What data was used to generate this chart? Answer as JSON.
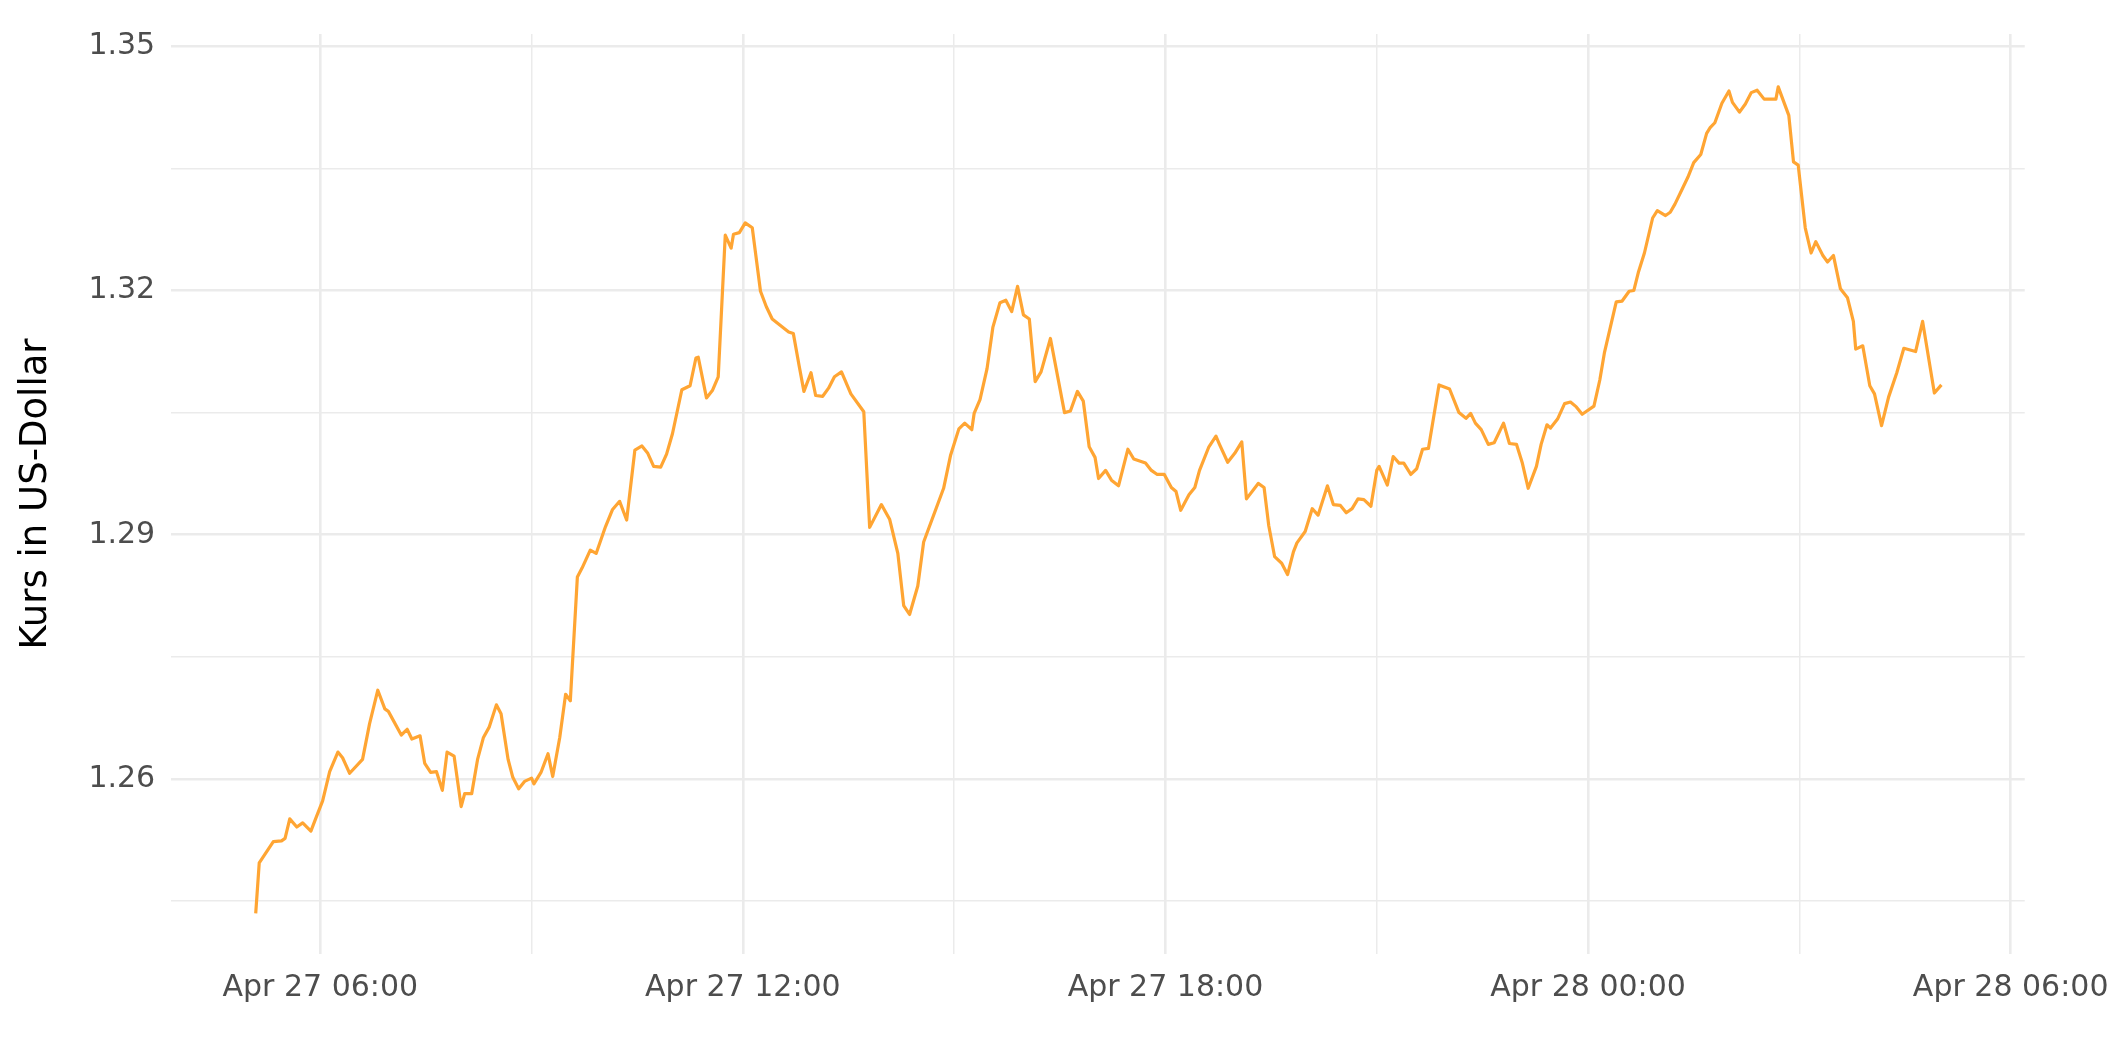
{
  "chart_data": {
    "type": "line",
    "ylabel": "Kurs in US-Dollar",
    "xlim": [
      "--04-27T03:53",
      "--04-28T06:12"
    ],
    "xticks": [
      {
        "value": "--04-27T06:00",
        "label": "Apr 27 06:00"
      },
      {
        "value": "--04-27T09:00",
        "label": null
      },
      {
        "value": "--04-27T12:00",
        "label": "Apr 27 12:00"
      },
      {
        "value": "--04-27T15:00",
        "label": null
      },
      {
        "value": "--04-27T18:00",
        "label": "Apr 27 18:00"
      },
      {
        "value": "--04-27T21:00",
        "label": null
      },
      {
        "value": "--04-28T00:00",
        "label": "Apr 28 00:00"
      },
      {
        "value": "--04-28T03:00",
        "label": null
      },
      {
        "value": "--04-28T06:00",
        "label": "Apr 28 06:00"
      }
    ],
    "ylim": [
      1.2385,
      1.3515
    ],
    "yticks": [
      {
        "value": 1.245,
        "label": null
      },
      1.26,
      {
        "value": 1.275,
        "label": null
      },
      1.29,
      {
        "value": 1.305,
        "label": null
      },
      1.32,
      {
        "value": 1.335,
        "label": null
      },
      1.35
    ],
    "grid": true,
    "legend": false,
    "marker": "none",
    "line_style": "solid",
    "x": [
      "--04-27T05:05",
      "--04-27T05:08",
      "--04-27T05:20",
      "--04-27T05:27",
      "--04-27T05:30",
      "--04-27T05:34",
      "--04-27T05:40",
      "--04-27T05:45",
      "--04-27T05:52",
      "--04-27T05:56",
      "--04-27T06:02",
      "--04-27T06:08",
      "--04-27T06:15",
      "--04-27T06:19",
      "--04-27T06:25",
      "--04-27T06:36",
      "--04-27T06:42",
      "--04-27T06:49",
      "--04-27T06:55",
      "--04-27T06:58",
      "--04-27T07:09",
      "--04-27T07:14",
      "--04-27T07:18",
      "--04-27T07:25",
      "--04-27T07:29",
      "--04-27T07:34",
      "--04-27T07:39",
      "--04-27T07:44",
      "--04-27T07:48",
      "--04-27T07:54",
      "--04-27T08:00",
      "--04-27T08:03",
      "--04-27T08:09",
      "--04-27T08:14",
      "--04-27T08:19",
      "--04-27T08:24",
      "--04-27T08:30",
      "--04-27T08:34",
      "--04-27T08:40",
      "--04-27T08:44",
      "--04-27T08:49",
      "--04-27T08:54",
      "--04-27T09:00",
      "--04-27T09:02",
      "--04-27T09:08",
      "--04-27T09:14",
      "--04-27T09:18",
      "--04-27T09:24",
      "--04-27T09:29",
      "--04-27T09:33",
      "--04-27T09:39",
      "--04-27T09:43",
      "--04-27T09:50",
      "--04-27T09:55",
      "--04-27T10:03",
      "--04-27T10:09",
      "--04-27T10:15",
      "--04-27T10:21",
      "--04-27T10:28",
      "--04-27T10:34",
      "--04-27T10:39",
      "--04-27T10:44",
      "--04-27T10:50",
      "--04-27T10:55",
      "--04-27T11:00",
      "--04-27T11:08",
      "--04-27T11:15",
      "--04-27T11:20",
      "--04-27T11:22",
      "--04-27T11:29",
      "--04-27T11:34",
      "--04-27T11:39",
      "--04-27T11:45",
      "--04-27T11:50",
      "--04-27T11:52",
      "--04-27T11:57",
      "--04-27T12:02",
      "--04-27T12:08",
      "--04-27T12:15",
      "--04-27T12:20",
      "--04-27T12:25",
      "--04-27T12:39",
      "--04-27T12:43",
      "--04-27T12:48",
      "--04-27T12:52",
      "--04-27T12:58",
      "--04-27T13:02",
      "--04-27T13:08",
      "--04-27T13:13",
      "--04-27T13:18",
      "--04-27T13:24",
      "--04-27T13:32",
      "--04-27T13:43",
      "--04-27T13:48",
      "--04-27T13:58",
      "--04-27T14:05",
      "--04-27T14:12",
      "--04-27T14:17",
      "--04-27T14:22",
      "--04-27T14:29",
      "--04-27T14:34",
      "--04-27T14:51",
      "--04-27T14:57",
      "--04-27T15:04",
      "--04-27T15:09",
      "--04-27T15:15",
      "--04-27T15:17",
      "--04-27T15:22",
      "--04-27T15:28",
      "--04-27T15:33",
      "--04-27T15:39",
      "--04-27T15:44",
      "--04-27T15:49",
      "--04-27T15:54",
      "--04-27T15:59",
      "--04-27T16:04",
      "--04-27T16:09",
      "--04-27T16:14",
      "--04-27T16:22",
      "--04-27T16:34",
      "--04-27T16:39",
      "--04-27T16:45",
      "--04-27T16:50",
      "--04-27T16:55",
      "--04-27T17:00",
      "--04-27T17:03",
      "--04-27T17:09",
      "--04-27T17:14",
      "--04-27T17:20",
      "--04-27T17:28",
      "--04-27T17:33",
      "--04-27T17:43",
      "--04-27T17:48",
      "--04-27T17:53",
      "--04-27T17:59",
      "--04-27T18:05",
      "--04-27T18:09",
      "--04-27T18:13",
      "--04-27T18:20",
      "--04-27T18:25",
      "--04-27T18:29",
      "--04-27T18:37",
      "--04-27T18:43",
      "--04-27T18:46",
      "--04-27T18:53",
      "--04-27T18:59",
      "--04-27T19:05",
      "--04-27T19:09",
      "--04-27T19:19",
      "--04-27T19:24",
      "--04-27T19:28",
      "--04-27T19:33",
      "--04-27T19:39",
      "--04-27T19:44",
      "--04-27T19:49",
      "--04-27T19:52",
      "--04-27T19:59",
      "--04-27T20:05",
      "--04-27T20:10",
      "--04-27T20:18",
      "--04-27T20:23",
      "--04-27T20:29",
      "--04-27T20:34",
      "--04-27T20:39",
      "--04-27T20:44",
      "--04-27T20:49",
      "--04-27T20:55",
      "--04-27T21:00",
      "--04-27T21:02",
      "--04-27T21:09",
      "--04-27T21:14",
      "--04-27T21:19",
      "--04-27T21:23",
      "--04-27T21:29",
      "--04-27T21:34",
      "--04-27T21:39",
      "--04-27T21:44",
      "--04-27T21:53",
      "--04-27T22:02",
      "--04-27T22:10",
      "--04-27T22:16",
      "--04-27T22:20",
      "--04-27T22:24",
      "--04-27T22:29",
      "--04-27T22:35",
      "--04-27T22:40",
      "--04-27T22:48",
      "--04-27T22:53",
      "--04-27T22:59",
      "--04-27T23:04",
      "--04-27T23:09",
      "--04-27T23:16",
      "--04-27T23:20",
      "--04-27T23:25",
      "--04-27T23:28",
      "--04-27T23:34",
      "--04-27T23:40",
      "--04-27T23:45",
      "--04-27T23:50",
      "--04-27T23:55",
      "--04-27T23:59",
      "--04-28T00:05",
      "--04-28T00:10",
      "--04-28T00:14",
      "--04-28T00:24",
      "--04-28T00:29",
      "--04-28T00:35",
      "--04-28T00:39",
      "--04-28T00:43",
      "--04-28T00:48",
      "--04-28T00:55",
      "--04-28T00:59",
      "--04-28T01:06",
      "--04-28T01:10",
      "--04-28T01:14",
      "--04-28T01:20",
      "--04-28T01:25",
      "--04-28T01:30",
      "--04-28T01:36",
      "--04-28T01:41",
      "--04-28T01:44",
      "--04-28T01:48",
      "--04-28T01:54",
      "--04-28T02:00",
      "--04-28T02:03",
      "--04-28T02:09",
      "--04-28T02:14",
      "--04-28T02:19",
      "--04-28T02:24",
      "--04-28T02:30",
      "--04-28T02:36",
      "--04-28T02:40",
      "--04-28T02:42",
      "--04-28T02:51",
      "--04-28T02:55",
      "--04-28T02:59",
      "--04-28T03:05",
      "--04-28T03:10",
      "--04-28T03:14",
      "--04-28T03:20",
      "--04-28T03:24",
      "--04-28T03:29",
      "--04-28T03:35",
      "--04-28T03:41",
      "--04-28T03:46",
      "--04-28T03:48",
      "--04-28T03:54",
      "--04-28T04:00",
      "--04-28T04:04",
      "--04-28T04:10",
      "--04-28T04:16",
      "--04-28T04:23",
      "--04-28T04:29",
      "--04-28T04:39",
      "--04-28T04:45",
      "--04-28T04:55",
      "--04-28T05:01"
    ],
    "series": [
      {
        "color": "#ffa533",
        "values": [
          1.2435,
          1.2497,
          1.2523,
          1.2524,
          1.2527,
          1.2551,
          1.2541,
          1.2546,
          1.2536,
          1.2551,
          1.2573,
          1.2609,
          1.2633,
          1.2626,
          1.2607,
          1.2624,
          1.2668,
          1.2709,
          1.2686,
          1.2683,
          1.2654,
          1.2661,
          1.2649,
          1.2653,
          1.2619,
          1.2608,
          1.2609,
          1.2586,
          1.2633,
          1.2628,
          1.2566,
          1.2582,
          1.2582,
          1.2624,
          1.2651,
          1.2664,
          1.2691,
          1.268,
          1.2624,
          1.2602,
          1.2588,
          1.2597,
          1.2601,
          1.2594,
          1.2608,
          1.2631,
          1.2603,
          1.2651,
          1.2704,
          1.2696,
          1.2848,
          1.2859,
          1.2881,
          1.2877,
          1.291,
          1.2931,
          1.2941,
          1.2918,
          1.3004,
          1.3009,
          1.3,
          1.2984,
          1.2983,
          1.2999,
          1.3024,
          1.3078,
          1.3083,
          1.3117,
          1.3118,
          1.3068,
          1.3077,
          1.3094,
          1.3268,
          1.3252,
          1.3269,
          1.3271,
          1.3283,
          1.3277,
          1.3199,
          1.318,
          1.3165,
          1.3149,
          1.3147,
          1.3107,
          1.3076,
          1.3099,
          1.3071,
          1.307,
          1.308,
          1.3094,
          1.31,
          1.3073,
          1.3051,
          1.2909,
          1.2937,
          1.2919,
          1.2877,
          1.2813,
          1.2802,
          1.2837,
          1.2891,
          1.2957,
          1.2998,
          1.303,
          1.3037,
          1.3029,
          1.3049,
          1.3066,
          1.3104,
          1.3155,
          1.3185,
          1.3188,
          1.3174,
          1.3205,
          1.317,
          1.3165,
          1.3088,
          1.31,
          1.3141,
          1.305,
          1.3052,
          1.3076,
          1.3064,
          1.3008,
          1.2995,
          1.2969,
          1.2979,
          1.2967,
          1.296,
          1.3005,
          1.2993,
          1.2988,
          1.2979,
          1.2974,
          1.2974,
          1.2958,
          1.2953,
          1.293,
          1.2949,
          1.2958,
          1.2979,
          1.3008,
          1.3021,
          1.3011,
          1.2989,
          1.3,
          1.3014,
          1.2944,
          1.2963,
          1.2958,
          1.2911,
          1.2873,
          1.2865,
          1.2851,
          1.2879,
          1.289,
          1.2904,
          1.2932,
          1.2924,
          1.296,
          1.2937,
          1.2936,
          1.2927,
          1.2932,
          1.2944,
          1.2943,
          1.2935,
          1.2979,
          1.2984,
          1.2961,
          1.2996,
          1.2988,
          1.2988,
          1.2974,
          1.2981,
          1.3005,
          1.3006,
          1.3084,
          1.3079,
          1.305,
          1.3043,
          1.3049,
          1.3037,
          1.3029,
          1.3011,
          1.3013,
          1.3037,
          1.3012,
          1.3011,
          1.2988,
          1.2957,
          1.2984,
          1.3011,
          1.3035,
          1.3031,
          1.3042,
          1.3061,
          1.3063,
          1.3057,
          1.3048,
          1.3052,
          1.3058,
          1.309,
          1.3124,
          1.3186,
          1.3187,
          1.3199,
          1.32,
          1.3223,
          1.3246,
          1.3289,
          1.3298,
          1.3292,
          1.3296,
          1.3306,
          1.3324,
          1.3339,
          1.3357,
          1.3367,
          1.3393,
          1.34,
          1.3406,
          1.343,
          1.3445,
          1.3431,
          1.3419,
          1.3429,
          1.3443,
          1.3446,
          1.3435,
          1.3435,
          1.3435,
          1.345,
          1.3415,
          1.3358,
          1.3354,
          1.3277,
          1.3246,
          1.326,
          1.3243,
          1.3235,
          1.3243,
          1.3202,
          1.3191,
          1.3162,
          1.3128,
          1.3132,
          1.3083,
          1.3073,
          1.3034,
          1.3069,
          1.3099,
          1.3129,
          1.3125,
          1.3162,
          1.3074,
          1.3084
        ]
      }
    ]
  }
}
